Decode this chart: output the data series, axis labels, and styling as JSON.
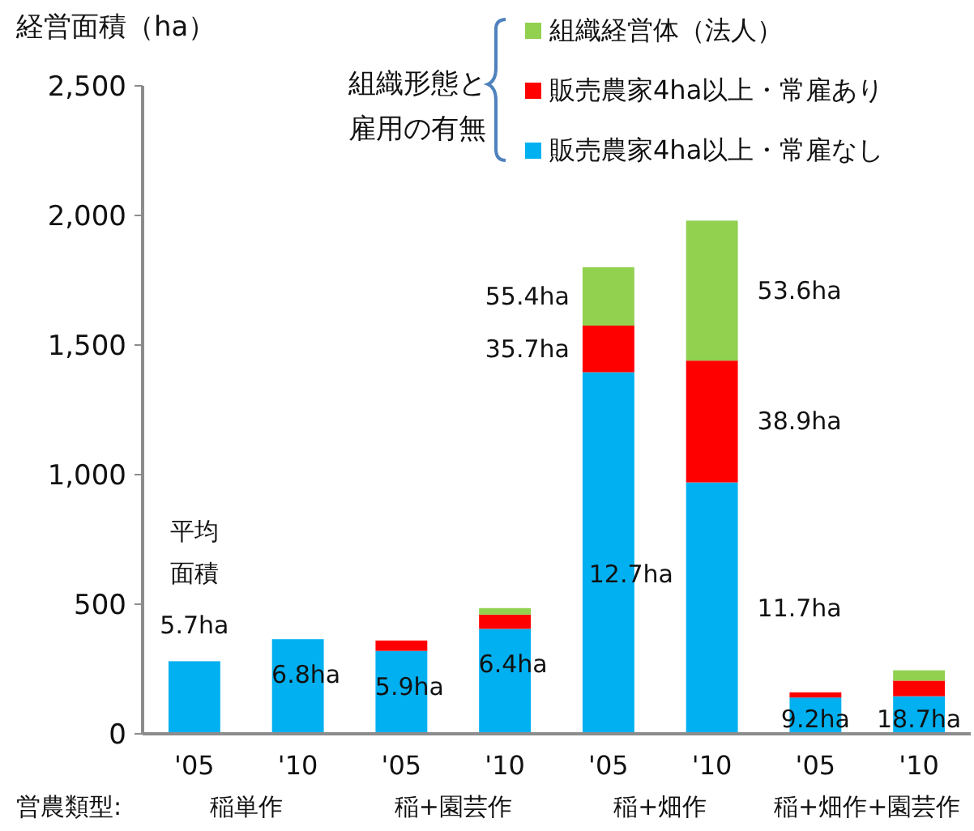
{
  "chart_data": {
    "type": "bar",
    "stacked": true,
    "ylabel": "経営面積（ha）",
    "legend_title": "組織形態と雇用の有無",
    "legend": "top right",
    "categories": [
      "'05",
      "'10",
      "'05",
      "'10",
      "'05",
      "'10",
      "'05",
      "'10"
    ],
    "series": [
      {
        "name": "販売農家4ha以上・常雇なし",
        "color": "#00b0f0",
        "values": [
          280,
          365,
          320,
          405,
          1395,
          970,
          140,
          145
        ]
      },
      {
        "name": "販売農家4ha以上・常雇あり",
        "color": "#ff0000",
        "values": [
          null,
          null,
          40,
          55,
          180,
          470,
          20,
          60
        ]
      },
      {
        "name": "組織経営体（法人）",
        "color": "#92d050",
        "values": [
          null,
          null,
          null,
          25,
          225,
          540,
          null,
          40
        ]
      }
    ],
    "ylim": [
      0,
      2500
    ],
    "yticks": [
      {
        "value": 0,
        "label": "0"
      },
      {
        "value": 500,
        "label": "500"
      },
      {
        "value": 1000,
        "label": "1,000"
      },
      {
        "value": 1500,
        "label": "1,500"
      },
      {
        "value": 2000,
        "label": "2,000"
      },
      {
        "value": 2500,
        "label": "2,500"
      }
    ],
    "annotations": [
      "平均面積",
      "5.7ha",
      "6.8ha",
      "5.9ha",
      "6.4ha",
      "12.7ha",
      "11.7ha",
      "9.2ha",
      "18.7ha",
      "35.7ha",
      "38.9ha",
      "55.4ha",
      "53.6ha",
      "営農類型:",
      "稲単作",
      "稲+園芸作",
      "稲+畑作",
      "稲+畑作+園芸作"
    ]
  }
}
